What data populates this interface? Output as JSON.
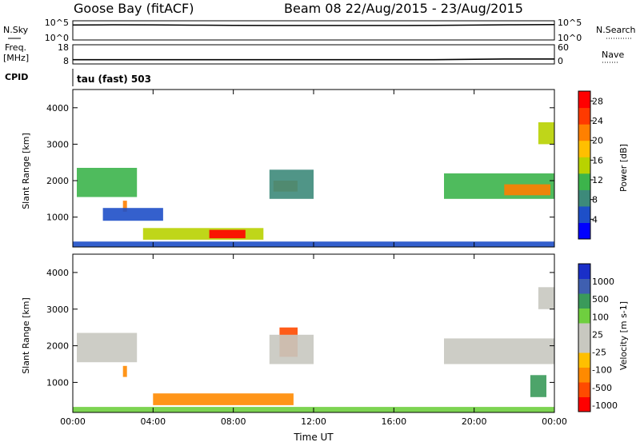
{
  "header": {
    "site": "Goose Bay (fitACF)",
    "beam_date": "Beam 08  22/Aug/2015 - 23/Aug/2015"
  },
  "noise_panel": {
    "left_label": "N.Sky",
    "right_label": "N.Search",
    "left_ticks": [
      "10^5",
      "10^0"
    ],
    "right_ticks": [
      "10^5",
      "10^0"
    ]
  },
  "freq_panel": {
    "left_label_1": "Freq.",
    "left_label_2": "[MHz]",
    "right_label": "Nave",
    "left_ticks": [
      "18",
      "8"
    ],
    "right_ticks": [
      "60",
      "0"
    ]
  },
  "cpid": {
    "label": "CPID",
    "text": "tau (fast) 503"
  },
  "colors": {
    "axis": "#000000",
    "power_colorbar": [
      "#0000ff",
      "#1e4fc8",
      "#3d8a7a",
      "#3cb44b",
      "#b8d200",
      "#ffbf00",
      "#ff8000",
      "#ff3a00",
      "#ff0000"
    ],
    "velocity_colorbar": [
      "#ff0000",
      "#ff4a00",
      "#ff8a00",
      "#ffbf00",
      "#c8c8c0",
      "#c8c8c0",
      "#6fcf3f",
      "#3a9a5a",
      "#3f5fb0",
      "#1a2fc8"
    ]
  },
  "chart_data": [
    {
      "type": "line",
      "title": "N.Sky / N.Search",
      "xlabel": "",
      "ylabel": "N.Sky",
      "y_scale": "log",
      "xlim": [
        "00:00",
        "00:00"
      ],
      "ylim": [
        1,
        100000
      ],
      "series": [
        {
          "name": "N.Sky",
          "x": [
            "00:00",
            "02:00",
            "04:00",
            "06:00",
            "08:00",
            "10:00",
            "12:00",
            "14:00",
            "16:00",
            "18:00",
            "20:00",
            "22:00",
            "00:00"
          ],
          "values": [
            8000,
            9000,
            8500,
            7000,
            6500,
            6000,
            6000,
            6000,
            6000,
            6500,
            7500,
            9000,
            10000
          ]
        }
      ]
    },
    {
      "type": "line",
      "title": "Freq. / Nave",
      "ylabel": "Freq. [MHz]",
      "ylim": [
        8,
        18
      ],
      "series": [
        {
          "name": "Freq.",
          "x": [
            "00:00",
            "06:00",
            "12:00",
            "18:00",
            "21:30",
            "00:00"
          ],
          "values": [
            10.2,
            10.2,
            10.2,
            10.2,
            10.6,
            10.6
          ]
        }
      ]
    },
    {
      "type": "heatmap",
      "title": "Power",
      "xlabel": "Time UT",
      "ylabel": "Slant Range [km]",
      "x_ticks": [
        "00:00",
        "04:00",
        "08:00",
        "12:00",
        "16:00",
        "20:00",
        "00:00"
      ],
      "y_ticks": [
        "1000",
        "2000",
        "3000",
        "4000"
      ],
      "ylim": [
        180,
        4500
      ],
      "colorbar_label": "Power [dB]",
      "colorbar_ticks": [
        "4",
        "8",
        "12",
        "16",
        "20",
        "24",
        "28"
      ],
      "colorbar_range": [
        0,
        30
      ],
      "regions": [
        {
          "t0": 0.2,
          "t1": 3.2,
          "r0": 1550,
          "r1": 2350,
          "value": 10
        },
        {
          "t0": 2.5,
          "t1": 2.7,
          "r0": 1150,
          "r1": 1450,
          "value": 22
        },
        {
          "t0": 1.5,
          "t1": 4.5,
          "r0": 900,
          "r1": 1250,
          "value": 6
        },
        {
          "t0": 3.5,
          "t1": 9.5,
          "r0": 380,
          "r1": 700,
          "value": 14
        },
        {
          "t0": 6.8,
          "t1": 8.6,
          "r0": 420,
          "r1": 650,
          "value": 28
        },
        {
          "t0": 10.0,
          "t1": 11.2,
          "r0": 1700,
          "r1": 2000,
          "value": 20
        },
        {
          "t0": 9.8,
          "t1": 12.0,
          "r0": 1500,
          "r1": 2300,
          "value": 8
        },
        {
          "t0": 18.5,
          "t1": 24.0,
          "r0": 1500,
          "r1": 2200,
          "value": 10
        },
        {
          "t0": 21.5,
          "t1": 23.8,
          "r0": 1600,
          "r1": 1900,
          "value": 22
        },
        {
          "t0": 23.2,
          "t1": 24.0,
          "r0": 3000,
          "r1": 3600,
          "value": 14
        },
        {
          "t0": 0.0,
          "t1": 24.0,
          "r0": 180,
          "r1": 330,
          "value": 5
        }
      ]
    },
    {
      "type": "heatmap",
      "title": "Velocity",
      "xlabel": "Time UT",
      "ylabel": "Slant Range [km]",
      "x_ticks": [
        "00:00",
        "04:00",
        "08:00",
        "12:00",
        "16:00",
        "20:00",
        "00:00"
      ],
      "y_ticks": [
        "1000",
        "2000",
        "3000",
        "4000"
      ],
      "ylim": [
        180,
        4500
      ],
      "colorbar_label": "Velocity [m s-1]",
      "colorbar_ticks": [
        "1000",
        "500",
        "100",
        "25",
        "-25",
        "-100",
        "-500",
        "-1000"
      ],
      "regions": [
        {
          "t0": 0.2,
          "t1": 3.2,
          "r0": 1550,
          "r1": 2350,
          "value": 0
        },
        {
          "t0": 2.5,
          "t1": 2.7,
          "r0": 1150,
          "r1": 1450,
          "value": -200
        },
        {
          "t0": 4.0,
          "t1": 11.0,
          "r0": 380,
          "r1": 700,
          "value": -300
        },
        {
          "t0": 10.3,
          "t1": 11.2,
          "r0": 1700,
          "r1": 2500,
          "value": -700
        },
        {
          "t0": 9.8,
          "t1": 12.0,
          "r0": 1500,
          "r1": 2300,
          "value": 0
        },
        {
          "t0": 18.5,
          "t1": 24.0,
          "r0": 1500,
          "r1": 2200,
          "value": 0
        },
        {
          "t0": 23.2,
          "t1": 24.0,
          "r0": 3000,
          "r1": 3600,
          "value": 0
        },
        {
          "t0": 22.8,
          "t1": 23.6,
          "r0": 600,
          "r1": 1200,
          "value": 200
        },
        {
          "t0": 0.0,
          "t1": 24.0,
          "r0": 180,
          "r1": 330,
          "value": 50
        }
      ]
    }
  ],
  "axes": {
    "xlabel": "Time UT",
    "ylabel": "Slant Range [km]",
    "x_ticks": [
      "00:00",
      "04:00",
      "08:00",
      "12:00",
      "16:00",
      "20:00",
      "00:00"
    ],
    "y_ticks": [
      "1000",
      "2000",
      "3000",
      "4000"
    ]
  },
  "power_cb": {
    "label": "Power [dB]",
    "ticks": [
      "28",
      "24",
      "20",
      "16",
      "12",
      "8",
      "4"
    ]
  },
  "velocity_cb": {
    "label": "Velocity [m s-1]",
    "ticks": [
      "1000",
      "500",
      "100",
      "25",
      "-25",
      "-100",
      "-500",
      "-1000"
    ]
  }
}
